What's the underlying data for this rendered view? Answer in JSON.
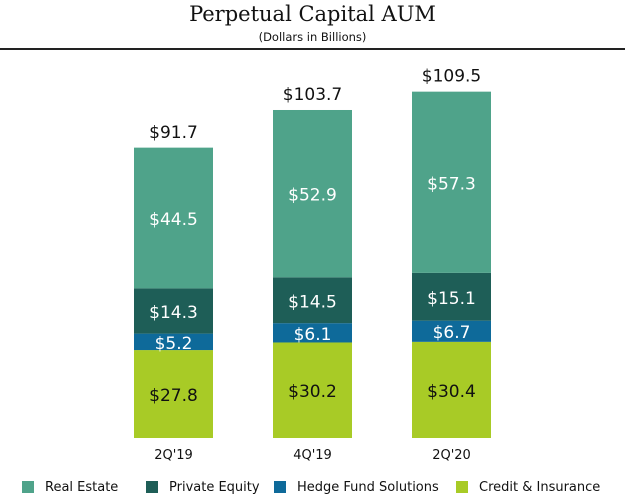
{
  "chart_data": {
    "type": "bar",
    "stacked": true,
    "title": "Perpetual Capital AUM",
    "subtitle": "(Dollars in Billions)",
    "xlabel": "",
    "ylabel": "",
    "categories": [
      "2Q'19",
      "4Q'19",
      "2Q'20"
    ],
    "series": [
      {
        "name": "Credit & Insurance",
        "color": "#A8CB26",
        "label_color": "#111111",
        "values": [
          27.8,
          30.2,
          30.4
        ],
        "labels": [
          "$27.8",
          "$30.2",
          "$30.4"
        ]
      },
      {
        "name": "Hedge Fund Solutions",
        "color": "#0E6A9A",
        "label_color": "#ffffff",
        "values": [
          5.2,
          6.1,
          6.7
        ],
        "labels": [
          "$5.2",
          "$6.1",
          "$6.7"
        ]
      },
      {
        "name": "Private Equity",
        "color": "#1E5E57",
        "label_color": "#ffffff",
        "values": [
          14.3,
          14.5,
          15.1
        ],
        "labels": [
          "$14.3",
          "$14.5",
          "$15.1"
        ]
      },
      {
        "name": "Real Estate",
        "color": "#4FA38A",
        "label_color": "#ffffff",
        "values": [
          44.5,
          52.9,
          57.3
        ],
        "labels": [
          "$44.5",
          "$52.9",
          "$57.3"
        ]
      }
    ],
    "totals": [
      91.7,
      103.7,
      109.5
    ],
    "total_labels": [
      "$91.7",
      "$103.7",
      "$109.5"
    ],
    "legend": {
      "placement": "bottom",
      "entries": [
        {
          "label": "Real Estate",
          "color": "#4FA38A"
        },
        {
          "label": "Private Equity",
          "color": "#1E5E57"
        },
        {
          "label": "Hedge Fund Solutions",
          "color": "#0E6A9A"
        },
        {
          "label": "Credit & Insurance",
          "color": "#A8CB26"
        }
      ]
    },
    "ylim": [
      0,
      110
    ],
    "grid": false
  }
}
